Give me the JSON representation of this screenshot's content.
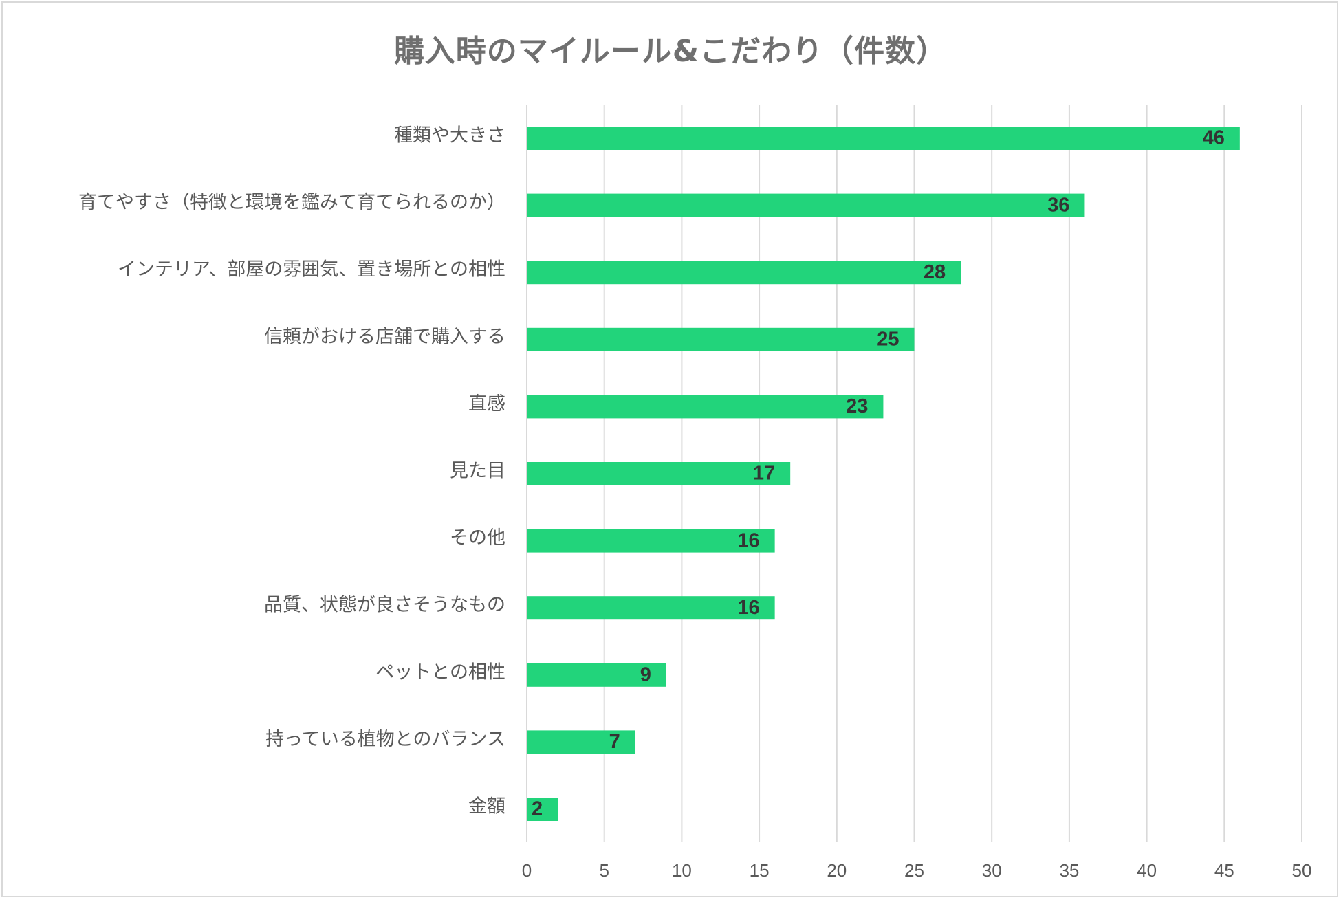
{
  "chart_data": {
    "type": "bar",
    "orientation": "horizontal",
    "title": "購入時のマイルール&こだわり（件数）",
    "categories": [
      "種類や大きさ",
      "育てやすさ（特徴と環境を鑑みて育てられるのか）",
      "インテリア、部屋の雰囲気、置き場所との相性",
      "信頼がおける店舗で購入する",
      "直感",
      "見た目",
      "その他",
      "品質、状態が良さそうなもの",
      "ペットとの相性",
      "持っている植物とのバランス",
      "金額"
    ],
    "values": [
      46,
      36,
      28,
      25,
      23,
      17,
      16,
      16,
      9,
      7,
      2
    ],
    "xlim": [
      0,
      50
    ],
    "xticks": [
      "0",
      "5",
      "10",
      "15",
      "20",
      "25",
      "30",
      "35",
      "40",
      "45",
      "50"
    ],
    "xlabel": "",
    "ylabel": "",
    "grid": "vertical",
    "legend": "none",
    "bar_color": "#22d47b",
    "data_labels": "inside-end"
  }
}
